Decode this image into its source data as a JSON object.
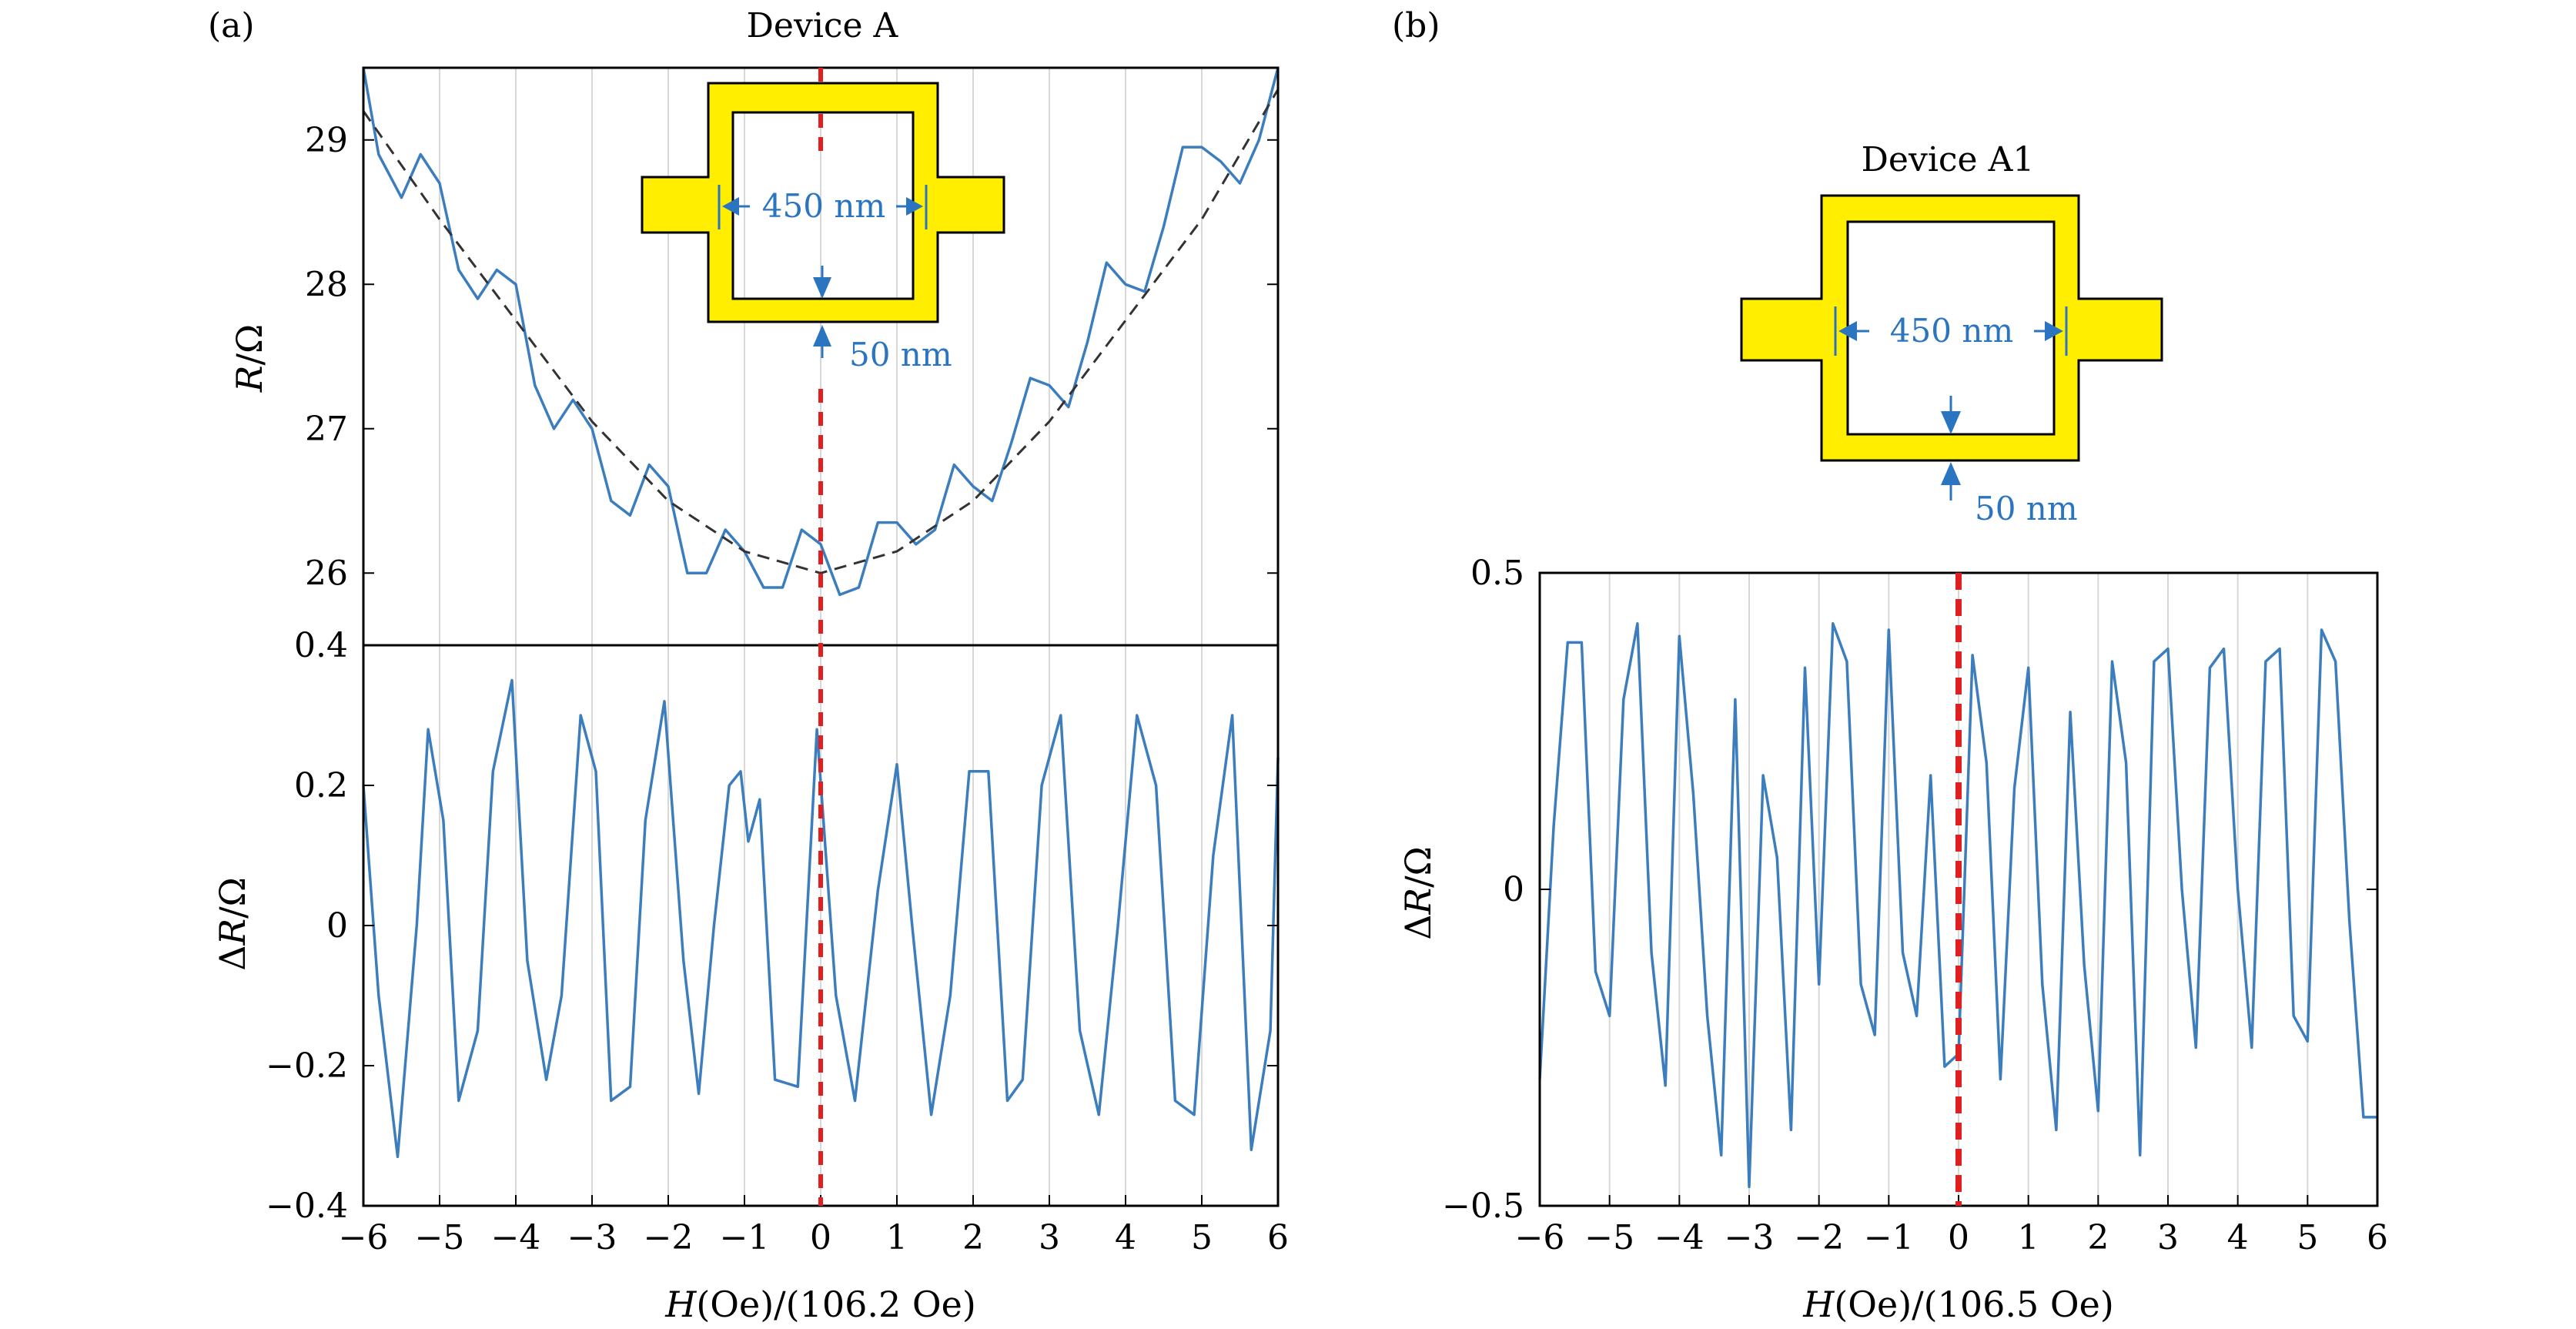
{
  "figure": {
    "panel_a_label": "(a)",
    "panel_b_label": "(b)"
  },
  "panel_a": {
    "title": "Device A",
    "upper_ylabel_italic": "R",
    "upper_ylabel_rest": "/Ω",
    "lower_ylabel": "ΔR/Ω",
    "lower_ylabel_delta": "Δ",
    "lower_ylabel_italic": "R",
    "lower_ylabel_rest": "/Ω",
    "xlabel_italic": "H",
    "xlabel_rest": "(Oe)/(106.2 Oe)",
    "inset": {
      "width_label": "450 nm",
      "thickness_label": "50 nm"
    }
  },
  "panel_b": {
    "title": "Device A1",
    "ylabel_delta": "Δ",
    "ylabel_italic": "R",
    "ylabel_rest": "/Ω",
    "xlabel_italic": "H",
    "xlabel_rest": "(Oe)/(106.5 Oe)",
    "inset": {
      "width_label": "450 nm",
      "thickness_label": "50 nm"
    }
  },
  "colors": {
    "data_line": "#3c7dbe",
    "fit_line": "#333333",
    "marker_line": "#e02020",
    "inset_fill": "#ffee00",
    "inset_text": "#2a74c0",
    "grid": "#d8d8d8"
  },
  "chart_data": [
    {
      "type": "line",
      "panel": "(a) upper",
      "title": "Device A",
      "xlabel": "",
      "ylabel": "R/Ω",
      "xlim": [
        -6,
        6
      ],
      "ylim": [
        25.5,
        29.5
      ],
      "xticks": [
        -6,
        -5,
        -4,
        -3,
        -2,
        -1,
        0,
        1,
        2,
        3,
        4,
        5,
        6
      ],
      "yticks": [
        26,
        27,
        28,
        29
      ],
      "ytick_labels": [
        "26",
        "27",
        "28",
        "29"
      ],
      "grid": "vertical",
      "series": [
        {
          "style": "solid",
          "x": [
            -6,
            -5.8,
            -5.5,
            -5.25,
            -5,
            -4.75,
            -4.5,
            -4.25,
            -4,
            -3.75,
            -3.5,
            -3.25,
            -3,
            -2.75,
            -2.5,
            -2.25,
            -2,
            -1.75,
            -1.5,
            -1.25,
            -1,
            -0.75,
            -0.5,
            -0.25,
            0,
            0.25,
            0.5,
            0.75,
            1,
            1.25,
            1.5,
            1.75,
            2,
            2.25,
            2.5,
            2.75,
            3,
            3.25,
            3.5,
            3.75,
            4,
            4.25,
            4.5,
            4.75,
            5,
            5.25,
            5.5,
            5.75,
            6
          ],
          "y": [
            29.5,
            28.9,
            28.6,
            28.9,
            28.7,
            28.1,
            27.9,
            28.1,
            28.0,
            27.3,
            27.0,
            27.2,
            27.0,
            26.5,
            26.4,
            26.75,
            26.6,
            26.0,
            26.0,
            26.3,
            26.15,
            25.9,
            25.9,
            26.3,
            26.2,
            25.85,
            25.9,
            26.35,
            26.35,
            26.2,
            26.3,
            26.75,
            26.6,
            26.5,
            26.9,
            27.35,
            27.3,
            27.15,
            27.6,
            28.15,
            28.0,
            27.95,
            28.4,
            28.95,
            28.95,
            28.85,
            28.7,
            29.0,
            29.5
          ]
        },
        {
          "style": "dashed",
          "x": [
            -6,
            -5,
            -4,
            -3,
            -2,
            -1,
            0,
            1,
            2,
            3,
            4,
            5,
            6
          ],
          "y": [
            29.2,
            28.45,
            27.75,
            27.05,
            26.5,
            26.15,
            26.0,
            26.15,
            26.5,
            27.05,
            27.75,
            28.45,
            29.35
          ]
        }
      ]
    },
    {
      "type": "line",
      "panel": "(a) lower",
      "xlabel": "H(Oe)/(106.2 Oe)",
      "ylabel": "ΔR/Ω",
      "xlim": [
        -6,
        6
      ],
      "ylim": [
        -0.4,
        0.4
      ],
      "xticks": [
        -6,
        -5,
        -4,
        -3,
        -2,
        -1,
        0,
        1,
        2,
        3,
        4,
        5,
        6
      ],
      "xtick_labels": [
        "−6",
        "−5",
        "−4",
        "−3",
        "−2",
        "−1",
        "0",
        "1",
        "2",
        "3",
        "4",
        "5",
        "6"
      ],
      "yticks": [
        -0.4,
        -0.2,
        0,
        0.2,
        0.4
      ],
      "ytick_labels": [
        "−0.4",
        "−0.2",
        "0",
        "0.2",
        "0.4"
      ],
      "grid": "vertical",
      "series": [
        {
          "x": [
            -6,
            -5.8,
            -5.55,
            -5.3,
            -5.15,
            -4.95,
            -4.75,
            -4.5,
            -4.3,
            -4.05,
            -3.85,
            -3.6,
            -3.4,
            -3.15,
            -2.95,
            -2.75,
            -2.5,
            -2.3,
            -2.05,
            -1.8,
            -1.6,
            -1.4,
            -1.2,
            -1.05,
            -0.95,
            -0.8,
            -0.6,
            -0.3,
            -0.05,
            0.2,
            0.45,
            0.75,
            1.0,
            1.2,
            1.45,
            1.7,
            1.95,
            2.2,
            2.45,
            2.65,
            2.9,
            3.15,
            3.4,
            3.65,
            3.9,
            4.15,
            4.4,
            4.65,
            4.9,
            5.15,
            5.4,
            5.65,
            5.9,
            6
          ],
          "y": [
            0.2,
            -0.1,
            -0.33,
            0.0,
            0.28,
            0.15,
            -0.25,
            -0.15,
            0.22,
            0.35,
            -0.05,
            -0.22,
            -0.1,
            0.3,
            0.22,
            -0.25,
            -0.23,
            0.15,
            0.32,
            -0.05,
            -0.24,
            0.0,
            0.2,
            0.22,
            0.12,
            0.18,
            -0.22,
            -0.23,
            0.28,
            -0.1,
            -0.25,
            0.05,
            0.23,
            0.0,
            -0.27,
            -0.1,
            0.22,
            0.22,
            -0.25,
            -0.22,
            0.2,
            0.3,
            -0.15,
            -0.27,
            0.0,
            0.3,
            0.2,
            -0.25,
            -0.27,
            0.1,
            0.3,
            -0.32,
            -0.15,
            0.24
          ]
        }
      ]
    },
    {
      "type": "line",
      "panel": "(b)",
      "title": "Device A1",
      "xlabel": "H(Oe)/(106.5 Oe)",
      "ylabel": "ΔR/Ω",
      "xlim": [
        -6,
        6
      ],
      "ylim": [
        -0.5,
        0.5
      ],
      "xticks": [
        -6,
        -5,
        -4,
        -3,
        -2,
        -1,
        0,
        1,
        2,
        3,
        4,
        5,
        6
      ],
      "xtick_labels": [
        "−6",
        "−5",
        "−4",
        "−3",
        "−2",
        "−1",
        "0",
        "1",
        "2",
        "3",
        "4",
        "5",
        "6"
      ],
      "yticks": [
        -0.5,
        0,
        0.5
      ],
      "ytick_labels": [
        "−0.5",
        "0",
        "0.5"
      ],
      "grid": "vertical",
      "series": [
        {
          "x": [
            -6,
            -5.8,
            -5.6,
            -5.4,
            -5.2,
            -5.0,
            -4.8,
            -4.6,
            -4.4,
            -4.2,
            -4.0,
            -3.8,
            -3.6,
            -3.4,
            -3.2,
            -3.0,
            -2.8,
            -2.6,
            -2.4,
            -2.2,
            -2.0,
            -1.8,
            -1.6,
            -1.4,
            -1.2,
            -1.0,
            -0.8,
            -0.6,
            -0.4,
            -0.2,
            0.0,
            0.2,
            0.4,
            0.6,
            0.8,
            1.0,
            1.2,
            1.4,
            1.6,
            1.8,
            2.0,
            2.2,
            2.4,
            2.6,
            2.8,
            3.0,
            3.2,
            3.4,
            3.6,
            3.8,
            4.0,
            4.2,
            4.4,
            4.6,
            4.8,
            5.0,
            5.2,
            5.4,
            5.6,
            5.8,
            6.0
          ],
          "y": [
            -0.3,
            0.1,
            0.39,
            0.39,
            -0.13,
            -0.2,
            0.3,
            0.42,
            -0.1,
            -0.31,
            0.4,
            0.15,
            -0.2,
            -0.42,
            0.3,
            -0.47,
            0.18,
            0.05,
            -0.38,
            0.35,
            -0.15,
            0.42,
            0.36,
            -0.15,
            -0.23,
            0.41,
            -0.1,
            -0.2,
            0.18,
            -0.28,
            -0.26,
            0.37,
            0.2,
            -0.3,
            0.16,
            0.35,
            -0.15,
            -0.38,
            0.28,
            -0.12,
            -0.35,
            0.36,
            0.2,
            -0.42,
            0.36,
            0.38,
            0.0,
            -0.25,
            0.35,
            0.38,
            0.0,
            -0.25,
            0.36,
            0.38,
            -0.2,
            -0.24,
            0.41,
            0.36,
            -0.05,
            -0.36,
            -0.36
          ]
        }
      ]
    }
  ]
}
